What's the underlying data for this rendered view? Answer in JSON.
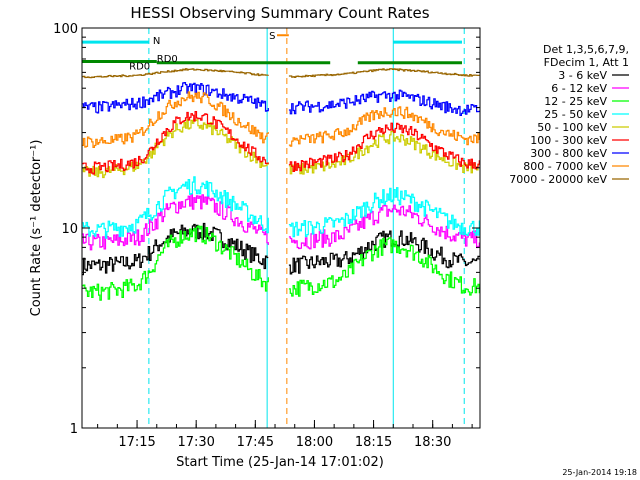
{
  "chart_data": {
    "type": "line",
    "title": "HESSI Observing Summary Count Rates",
    "xlabel": "Start Time (25-Jan-14 17:01:02)",
    "ylabel": "Count Rate (s⁻¹ detector⁻¹)",
    "y_scale": "log",
    "ylim": [
      1,
      100
    ],
    "xlim": [
      "17:01:02",
      "18:42:00"
    ],
    "x_ticks": [
      "17:15",
      "17:30",
      "17:45",
      "18:00",
      "18:15",
      "18:30"
    ],
    "y_ticks": [
      "1",
      "10",
      "100"
    ],
    "legend_header": [
      "Det 1,3,5,6,7,9,",
      "FDecim 1, Att 1"
    ],
    "legend_position": "right",
    "timestamp": "25-Jan-2014 19:18",
    "flags": [
      {
        "label": "N",
        "color": "#00e5ee",
        "value": 85
      },
      {
        "label": "RD0",
        "color": "#008800",
        "value": 68
      },
      {
        "label": "RD0",
        "color": "#008800",
        "value": 67
      },
      {
        "label": "S",
        "color": "#ff8800",
        "value": 92
      }
    ],
    "vlines": [
      {
        "time": "17:18",
        "color": "#00e5ee",
        "style": "dashed"
      },
      {
        "time": "17:48",
        "color": "#00e5ee",
        "style": "solid"
      },
      {
        "time": "17:53",
        "color": "#ff8800",
        "style": "dashed"
      },
      {
        "time": "18:20",
        "color": "#00e5ee",
        "style": "solid"
      },
      {
        "time": "18:38",
        "color": "#00e5ee",
        "style": "dashed"
      }
    ],
    "gaps": [
      [
        "17:48:30",
        "17:53:30"
      ]
    ],
    "x_times": [
      "17:01",
      "17:05",
      "17:10",
      "17:15",
      "17:18",
      "17:21",
      "17:24",
      "17:27",
      "17:30",
      "17:33",
      "17:36",
      "17:40",
      "17:44",
      "17:47",
      "17:54",
      "17:58",
      "18:02",
      "18:05",
      "18:08",
      "18:11",
      "18:14",
      "18:17",
      "18:20",
      "18:23",
      "18:26",
      "18:30",
      "18:34",
      "18:38"
    ],
    "series": [
      {
        "name": "3 - 6 keV",
        "color": "#000000",
        "values": [
          6.5,
          6.5,
          6.6,
          6.8,
          7.5,
          8.5,
          9.2,
          9.6,
          9.7,
          9.5,
          9.0,
          8.2,
          7.4,
          6.9,
          6.5,
          6.6,
          6.8,
          6.8,
          7.0,
          7.5,
          8.2,
          8.8,
          9.0,
          8.8,
          8.4,
          7.6,
          7.0,
          6.7
        ]
      },
      {
        "name": "6 - 12 keV",
        "color": "#ff00ff",
        "values": [
          8.5,
          8.5,
          8.6,
          9.0,
          10.0,
          11.5,
          12.8,
          13.5,
          13.7,
          13.3,
          12.4,
          11.2,
          10.0,
          9.1,
          8.6,
          8.7,
          8.9,
          9.0,
          9.4,
          10.2,
          11.2,
          12.0,
          12.4,
          12.1,
          11.4,
          10.3,
          9.4,
          8.8
        ]
      },
      {
        "name": "12 - 25 keV",
        "color": "#00ff00",
        "values": [
          4.8,
          4.8,
          4.9,
          5.2,
          6.0,
          7.5,
          8.6,
          9.3,
          9.5,
          9.1,
          8.2,
          7.1,
          6.0,
          5.4,
          5.0,
          5.1,
          5.3,
          5.4,
          5.8,
          6.6,
          7.5,
          8.1,
          8.3,
          8.0,
          7.4,
          6.4,
          5.6,
          5.1
        ]
      },
      {
        "name": "25 - 50 keV",
        "color": "#00ffff",
        "values": [
          9.8,
          9.8,
          10.0,
          10.5,
          11.8,
          13.5,
          15.2,
          16.2,
          16.5,
          15.9,
          14.6,
          13.0,
          11.5,
          10.5,
          9.9,
          10.0,
          10.3,
          10.5,
          11.0,
          12.0,
          13.2,
          14.2,
          14.6,
          14.2,
          13.3,
          12.0,
          10.8,
          10.1
        ]
      },
      {
        "name": "50 - 100 keV",
        "color": "#cccc00",
        "values": [
          19,
          19,
          19.5,
          20.5,
          23,
          27,
          30.5,
          32.5,
          33,
          32,
          29.5,
          26,
          23,
          21,
          19.5,
          19.8,
          20.3,
          20.8,
          21.8,
          23.8,
          26,
          27.8,
          28.5,
          27.8,
          26,
          23.5,
          21.5,
          20
        ]
      },
      {
        "name": "100 - 300 keV",
        "color": "#ff0000",
        "values": [
          20,
          20,
          20.5,
          21.5,
          24,
          29,
          33,
          36,
          36.5,
          35.5,
          32,
          28,
          24,
          22,
          20.5,
          21,
          21.5,
          22,
          23,
          26,
          29,
          31,
          31.5,
          31,
          29,
          25.5,
          23,
          21
        ]
      },
      {
        "name": "300 - 800 keV",
        "color": "#0000ff",
        "values": [
          40,
          40,
          41,
          42,
          44,
          46,
          48,
          50,
          50,
          49,
          47,
          45,
          43,
          41,
          40,
          40.5,
          41,
          41.5,
          42.5,
          43.5,
          45,
          46,
          46,
          45.5,
          44,
          42,
          40,
          39
        ]
      },
      {
        "name": "800 - 7000 keV",
        "color": "#ff8800",
        "values": [
          27,
          27,
          27.5,
          29,
          33,
          38,
          42,
          45,
          45.5,
          44,
          40,
          35,
          31,
          28.5,
          27.5,
          27.8,
          28.5,
          29.2,
          30.5,
          33,
          36,
          38,
          38.5,
          37.8,
          35.5,
          32,
          29.5,
          28
        ]
      },
      {
        "name": "7000 - 20000 keV",
        "color": "#996600",
        "values": [
          57,
          57,
          57.5,
          58,
          59,
          60,
          61,
          62,
          62,
          61.5,
          61,
          60,
          59,
          58,
          57,
          57.5,
          58,
          58.5,
          59,
          60,
          61,
          62,
          62,
          61.5,
          61,
          60,
          59,
          58
        ]
      }
    ]
  }
}
